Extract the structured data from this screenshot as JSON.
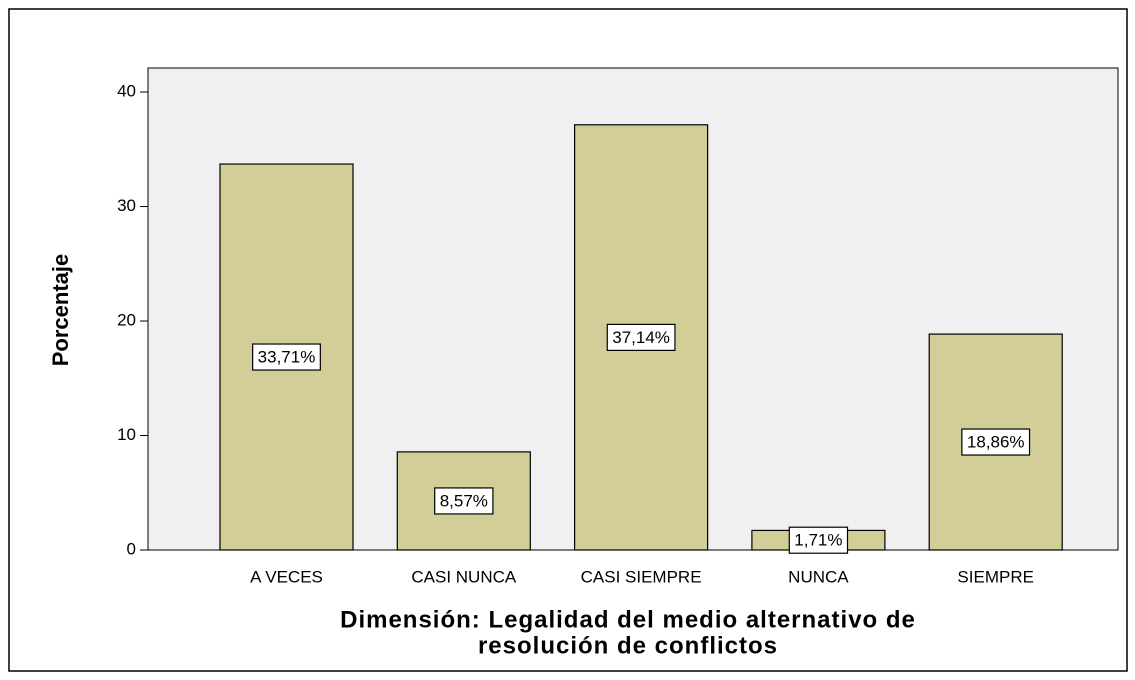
{
  "chart_data": {
    "type": "bar",
    "ylabel": "Porcentaje",
    "xlabel": [
      "Dimensión: Legalidad del medio alternativo de",
      "resolución de conflictos"
    ],
    "categories": [
      "A VECES",
      "CASI NUNCA",
      "CASI SIEMPRE",
      "NUNCA",
      "SIEMPRE"
    ],
    "values": [
      33.71,
      8.57,
      37.14,
      1.71,
      18.86
    ],
    "value_labels": [
      "33,71%",
      "8,57%",
      "37,14%",
      "1,71%",
      "18,86%"
    ],
    "color": "#d3ce98",
    "ylim": [
      0,
      42.1
    ],
    "yticks": [
      0,
      10,
      20,
      30,
      40
    ]
  }
}
